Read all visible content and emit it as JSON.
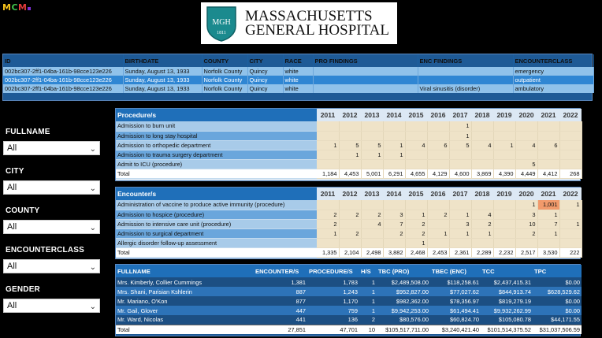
{
  "brand": {
    "mcm_letters": [
      "M",
      "C",
      "M"
    ]
  },
  "hospital": {
    "line1": "MASSACHUSETTS",
    "line2": "GENERAL HOSPITAL",
    "shield_letters": "MGH",
    "shield_year": "1811",
    "shield_color": "#1b8a8e"
  },
  "encounters": {
    "columns": [
      "ID",
      "BIRTHDATE",
      "COUNTY",
      "CITY",
      "RACE",
      "PRO FINDINGS",
      "ENC FINDINGS",
      "ENCOUNTERCLASS"
    ],
    "rows": [
      [
        "002bc307-2ff1-04ba-161b-98cce123e226",
        "Sunday, August 13, 1933",
        "Norfolk County",
        "Quincy",
        "white",
        "",
        "",
        "emergency"
      ],
      [
        "002bc307-2ff1-04ba-161b-98cce123e226",
        "Sunday, August 13, 1933",
        "Norfolk County",
        "Quincy",
        "white",
        "",
        "",
        "outpatient"
      ],
      [
        "002bc307-2ff1-04ba-161b-98cce123e226",
        "Sunday, August 13, 1933",
        "Norfolk County",
        "Quincy",
        "white",
        "",
        "Viral sinusitis (disorder)",
        "ambulatory"
      ]
    ]
  },
  "slicers": [
    {
      "label": "FULLNAME",
      "value": "All"
    },
    {
      "label": "CITY",
      "value": "All"
    },
    {
      "label": "COUNTY",
      "value": "All"
    },
    {
      "label": "ENCOUNTERCLASS",
      "value": "All"
    },
    {
      "label": "GENDER",
      "value": "All"
    }
  ],
  "procedures": {
    "header": "Procedure/s",
    "years": [
      "2011",
      "2012",
      "2013",
      "2014",
      "2015",
      "2016",
      "2017",
      "2018",
      "2019",
      "2020",
      "2021",
      "2022"
    ],
    "rows": [
      {
        "label": "Admission to burn unit",
        "values": [
          "",
          "",
          "",
          "",
          "",
          "",
          "1",
          "",
          "",
          "",
          "",
          ""
        ]
      },
      {
        "label": "Admission to long stay hospital",
        "values": [
          "",
          "",
          "",
          "",
          "",
          "",
          "1",
          "",
          "",
          "",
          "",
          ""
        ]
      },
      {
        "label": "Admission to orthopedic department",
        "values": [
          "1",
          "5",
          "5",
          "1",
          "4",
          "6",
          "5",
          "4",
          "1",
          "4",
          "6",
          ""
        ]
      },
      {
        "label": "Admission to trauma surgery department",
        "values": [
          "",
          "1",
          "1",
          "1",
          "",
          "",
          "",
          "",
          "",
          "",
          "",
          ""
        ]
      },
      {
        "label": "Admit to ICU (procedure)",
        "values": [
          "",
          "",
          "",
          "",
          "",
          "",
          "",
          "",
          "",
          "5",
          "",
          ""
        ]
      }
    ],
    "total": {
      "label": "Total",
      "values": [
        "1,184",
        "4,453",
        "5,001",
        "6,291",
        "4,655",
        "4,129",
        "4,600",
        "3,869",
        "4,390",
        "4,449",
        "4,412",
        "268"
      ]
    }
  },
  "encounter_matrix": {
    "header": "Encounter/s",
    "years": [
      "2011",
      "2012",
      "2013",
      "2014",
      "2015",
      "2016",
      "2017",
      "2018",
      "2019",
      "2020",
      "2021",
      "2022"
    ],
    "rows": [
      {
        "label": "Administration of vaccine to produce active immunity (procedure)",
        "values": [
          "",
          "",
          "",
          "",
          "",
          "",
          "",
          "",
          "",
          "1",
          "1,001",
          "1"
        ]
      },
      {
        "label": "Admission to hospice (procedure)",
        "values": [
          "2",
          "2",
          "2",
          "3",
          "1",
          "2",
          "1",
          "4",
          "",
          "3",
          "1",
          ""
        ]
      },
      {
        "label": "Admission to intensive care unit (procedure)",
        "values": [
          "2",
          "",
          "4",
          "7",
          "2",
          "",
          "3",
          "2",
          "",
          "10",
          "7",
          "1"
        ]
      },
      {
        "label": "Admission to surgical department",
        "values": [
          "1",
          "2",
          "",
          "2",
          "2",
          "1",
          "1",
          "1",
          "",
          "2",
          "1",
          ""
        ]
      },
      {
        "label": "Allergic disorder follow-up assessment",
        "values": [
          "",
          "",
          "",
          "",
          "1",
          "",
          "",
          "",
          "",
          "",
          "",
          ""
        ]
      }
    ],
    "total": {
      "label": "Total",
      "values": [
        "1,335",
        "2,104",
        "2,498",
        "3,882",
        "2,468",
        "2,453",
        "2,361",
        "2,289",
        "2,232",
        "2,517",
        "3,530",
        "222"
      ]
    },
    "highlight_color": "#f19a6b"
  },
  "patients": {
    "columns": [
      "FULLNAME",
      "ENCOUNTER/S",
      "PROCEDURE/S",
      "H/S",
      "TBC (PRO)",
      "TBEC (ENC)",
      "TCC",
      "TPC"
    ],
    "rows": [
      [
        "Mrs. Kimberly, Collier Cummings",
        "1,381",
        "1,783",
        "1",
        "$2,489,508.00",
        "$118,258.61",
        "$2,437,415.31",
        "$0.00"
      ],
      [
        "Mrs. Shani, Parisian Kshlerin",
        "887",
        "1,243",
        "1",
        "$952,827.00",
        "$77,027.62",
        "$844,913.74",
        "$628,529.62"
      ],
      [
        "Mr. Mariano, O'Kon",
        "877",
        "1,170",
        "1",
        "$982,362.00",
        "$78,356.97",
        "$819,279.19",
        "$0.00"
      ],
      [
        "Mr. Gail, Glover",
        "447",
        "759",
        "1",
        "$9,942,253.00",
        "$61,494.41",
        "$9,932,262.99",
        "$0.00"
      ],
      [
        "Mr. Ward, Nicolas",
        "441",
        "136",
        "2",
        "$80,576.00",
        "$60,824.70",
        "$105,080.78",
        "$44,171.55"
      ]
    ],
    "total": [
      "Total",
      "27,851",
      "47,701",
      "10",
      "$105,517,711.00",
      "$3,240,421.40",
      "$101,514,375.52",
      "$31,037,506.59"
    ]
  }
}
